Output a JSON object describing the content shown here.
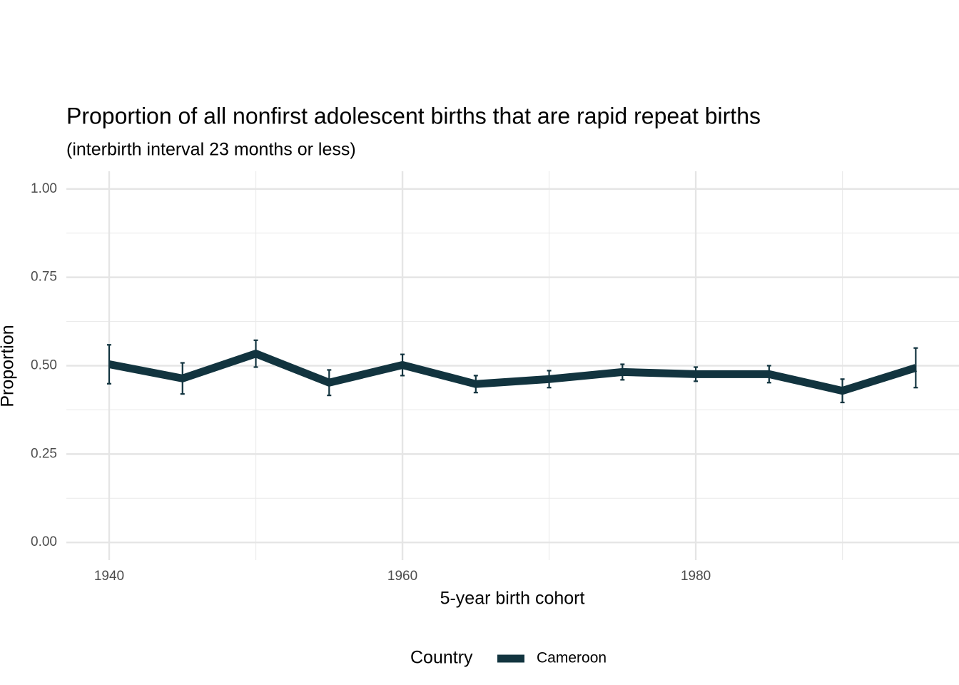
{
  "chart_data": {
    "type": "line",
    "title": "Proportion of all nonfirst adolescent births that are rapid repeat births",
    "subtitle": "(interbirth interval 23 months or less)",
    "x_label": "5-year birth cohort",
    "y_label": "Proportion",
    "legend_title": "Country",
    "x": [
      1940,
      1945,
      1950,
      1955,
      1960,
      1965,
      1970,
      1975,
      1980,
      1985,
      1990,
      1995
    ],
    "series": [
      {
        "name": "Cameroon",
        "color": "#12343f",
        "values": [
          0.504,
          0.464,
          0.534,
          0.452,
          0.502,
          0.448,
          0.462,
          0.482,
          0.476,
          0.476,
          0.429,
          0.494
        ],
        "errors": [
          0.055,
          0.044,
          0.038,
          0.036,
          0.03,
          0.024,
          0.024,
          0.022,
          0.02,
          0.024,
          0.033,
          0.056
        ]
      }
    ],
    "xlim": [
      1937.08,
      1997.95
    ],
    "ylim": [
      -0.05,
      1.05
    ],
    "xticks": [
      1940,
      1960,
      1980
    ],
    "yticks": [
      {
        "value": 0,
        "label": "0.00"
      },
      {
        "value": 0.25,
        "label": "0.25"
      },
      {
        "value": 0.5,
        "label": "0.50"
      },
      {
        "value": 0.75,
        "label": "0.75"
      },
      {
        "value": 1,
        "label": "1.00"
      }
    ],
    "grid": true,
    "legend_position": "bottom"
  }
}
